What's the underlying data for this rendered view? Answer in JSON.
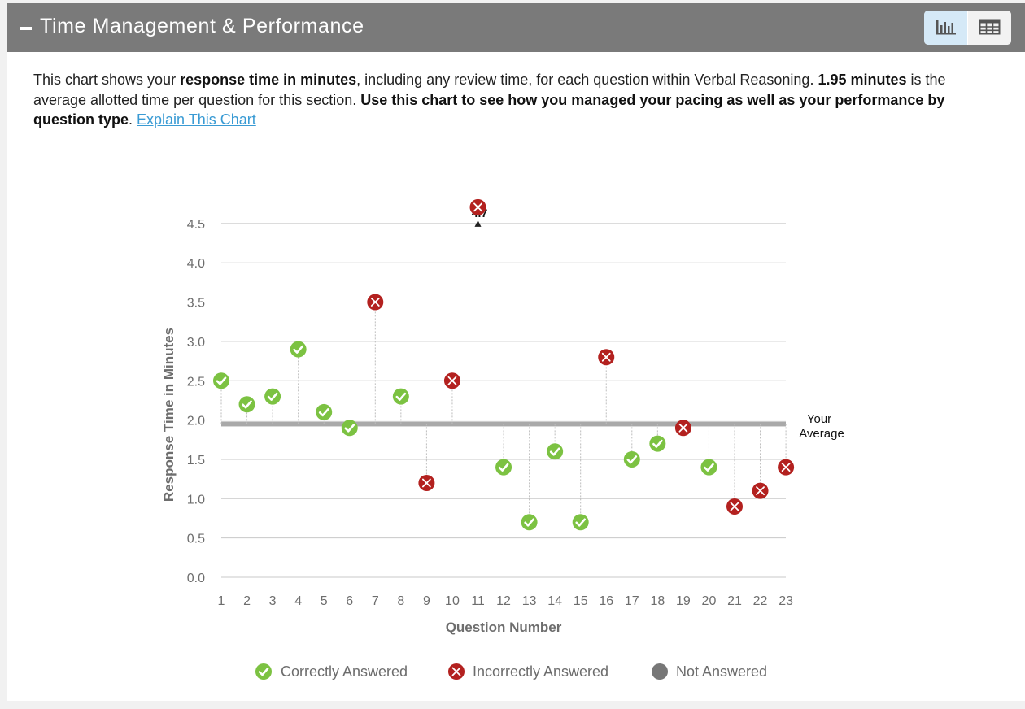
{
  "header": {
    "title": "Time Management & Performance"
  },
  "view_toggle": {
    "options": [
      "chart-view",
      "table-view"
    ],
    "selected": "chart-view"
  },
  "description": {
    "p1": "This chart shows your ",
    "b1": "response time in minutes",
    "p2": ", including any review time, for each question within Verbal Reasoning. ",
    "b2": "1.95 minutes",
    "p3": " is the average allotted time per question for this section. ",
    "b3": "Use this chart to see how you managed your pacing as well as your performance by question type",
    "p4": ". ",
    "link": "Explain This Chart"
  },
  "chart_data": {
    "type": "scatter",
    "xlabel": "Question Number",
    "ylabel": "Response Time in Minutes",
    "x": [
      1,
      2,
      3,
      4,
      5,
      6,
      7,
      8,
      9,
      10,
      11,
      12,
      13,
      14,
      15,
      16,
      17,
      18,
      19,
      20,
      21,
      22,
      23
    ],
    "y": [
      2.5,
      2.2,
      2.3,
      2.9,
      2.1,
      1.9,
      3.5,
      2.3,
      1.2,
      2.5,
      4.7,
      1.4,
      0.7,
      1.6,
      0.7,
      2.8,
      1.5,
      1.7,
      1.9,
      1.4,
      0.9,
      1.1,
      1.4
    ],
    "status": [
      "correct",
      "correct",
      "correct",
      "correct",
      "correct",
      "correct",
      "incorrect",
      "correct",
      "incorrect",
      "incorrect",
      "incorrect",
      "correct",
      "correct",
      "correct",
      "correct",
      "incorrect",
      "correct",
      "correct",
      "incorrect",
      "correct",
      "incorrect",
      "incorrect",
      "incorrect"
    ],
    "ylim": [
      0,
      4.5
    ],
    "yticks": [
      "0.0",
      "0.5",
      "1.0",
      "1.5",
      "2.0",
      "2.5",
      "3.0",
      "3.5",
      "4.0",
      "4.5"
    ],
    "xticks": [
      "1",
      "2",
      "3",
      "4",
      "5",
      "6",
      "7",
      "8",
      "9",
      "10",
      "11",
      "12",
      "13",
      "14",
      "15",
      "16",
      "17",
      "18",
      "19",
      "20",
      "21",
      "22",
      "23"
    ],
    "average": 1.95,
    "average_label": [
      "Your",
      "Average"
    ],
    "overflow_label": "4.7",
    "grid": true,
    "legend_position": "bottom",
    "legend": [
      {
        "key": "correct",
        "label": "Correctly Answered"
      },
      {
        "key": "incorrect",
        "label": "Incorrectly Answered"
      },
      {
        "key": "unanswered",
        "label": "Not Answered"
      }
    ],
    "colors": {
      "correct": "#7cc242",
      "incorrect": "#b3211f",
      "unanswered": "#777777",
      "grid": "#c8c8c8",
      "average": "#a9a9a9"
    }
  }
}
